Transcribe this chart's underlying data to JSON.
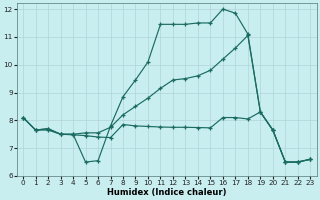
{
  "xlabel": "Humidex (Indice chaleur)",
  "bg_color": "#c8eef0",
  "grid_color": "#b0d4d8",
  "line_color": "#1a6b60",
  "xlim": [
    -0.5,
    23.5
  ],
  "ylim": [
    6,
    12.2
  ],
  "yticks": [
    6,
    7,
    8,
    9,
    10,
    11,
    12
  ],
  "xticks": [
    0,
    1,
    2,
    3,
    4,
    5,
    6,
    7,
    8,
    9,
    10,
    11,
    12,
    13,
    14,
    15,
    16,
    17,
    18,
    19,
    20,
    21,
    22,
    23
  ],
  "line_A_x": [
    0,
    1,
    2,
    3,
    4,
    5,
    6,
    7,
    8,
    9,
    10,
    11,
    12,
    13,
    14,
    15,
    16,
    17,
    18,
    19,
    20,
    21,
    22,
    23
  ],
  "line_A_y": [
    8.1,
    7.65,
    7.7,
    7.5,
    7.5,
    6.5,
    6.55,
    7.8,
    8.85,
    9.45,
    10.1,
    11.45,
    11.45,
    11.45,
    11.5,
    11.5,
    12.0,
    11.85,
    11.1,
    8.3,
    7.65,
    6.5,
    6.5,
    6.6
  ],
  "line_B_x": [
    0,
    1,
    2,
    3,
    4,
    5,
    6,
    7,
    8,
    9,
    10,
    11,
    12,
    13,
    14,
    15,
    16,
    17,
    18,
    19,
    20,
    21,
    22,
    23
  ],
  "line_B_y": [
    8.1,
    7.65,
    7.7,
    7.5,
    7.5,
    7.55,
    7.55,
    7.75,
    8.2,
    8.5,
    8.8,
    9.15,
    9.45,
    9.5,
    9.6,
    9.8,
    10.2,
    10.6,
    11.05,
    8.3,
    7.65,
    6.5,
    6.5,
    6.6
  ],
  "line_C_x": [
    0,
    1,
    2,
    3,
    4,
    5,
    6,
    7,
    8,
    9,
    10,
    11,
    12,
    13,
    14,
    15,
    16,
    17,
    18,
    19,
    20,
    21,
    22,
    23
  ],
  "line_C_y": [
    8.1,
    7.65,
    7.65,
    7.5,
    7.48,
    7.45,
    7.4,
    7.38,
    7.85,
    7.8,
    7.78,
    7.76,
    7.75,
    7.75,
    7.74,
    7.73,
    8.1,
    8.1,
    8.05,
    8.3,
    7.65,
    6.5,
    6.5,
    6.6
  ]
}
